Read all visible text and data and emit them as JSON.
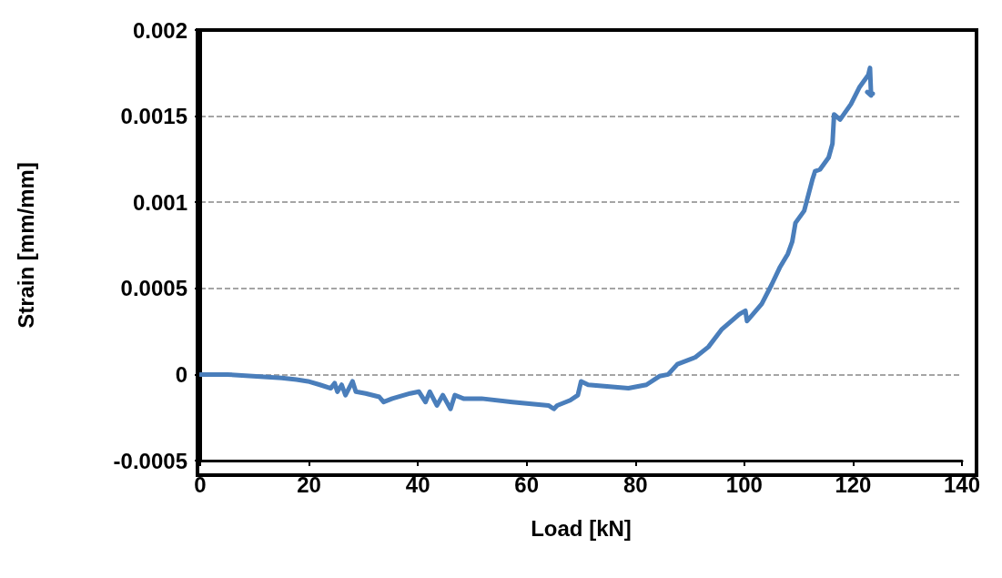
{
  "chart_data": {
    "type": "line",
    "xlabel": "Load [kN]",
    "ylabel": "Strain [mm/mm]",
    "xlim": [
      0,
      140
    ],
    "xticks": [
      0,
      20,
      40,
      60,
      80,
      100,
      120,
      140
    ],
    "ylim": [
      -0.0005,
      0.002
    ],
    "yticks": [
      -0.0005,
      0,
      0.0005,
      0.001,
      0.0015,
      0.002
    ],
    "grid": "y",
    "marker": "none",
    "line_style": "solid",
    "series": [
      {
        "color": "#4a7ebb",
        "x": [
          0,
          5,
          15,
          17.7,
          19.8,
          22,
          24,
          24.7,
          25.2,
          26,
          26.7,
          28,
          28.6,
          30.4,
          32.9,
          33.7,
          35.3,
          38.6,
          40.2,
          41.4,
          42.2,
          43.5,
          44.6,
          46,
          46.8,
          48.4,
          51.7,
          57.4,
          64,
          65,
          65.6,
          68,
          69.4,
          70,
          71.3,
          78.7,
          82,
          84.4,
          86,
          87.7,
          91,
          93.4,
          95.8,
          99.1,
          100.2,
          100.5,
          103.2,
          105,
          106.5,
          108,
          108.8,
          109.4,
          111,
          112.5,
          113,
          113.9,
          115.5,
          116.2,
          116.5,
          117.6,
          119.6,
          121.2,
          122.8,
          123.1,
          123.3,
          122.6,
          123.6
        ],
        "values": [
          0,
          0,
          -2e-05,
          -3e-05,
          -4e-05,
          -6e-05,
          -8e-05,
          -5e-05,
          -0.0001,
          -6e-05,
          -0.00012,
          -4e-05,
          -0.0001,
          -0.00011,
          -0.00013,
          -0.00016,
          -0.00014,
          -0.00011,
          -0.0001,
          -0.00016,
          -0.0001,
          -0.00018,
          -0.00012,
          -0.0002,
          -0.00012,
          -0.00014,
          -0.00014,
          -0.00016,
          -0.00018,
          -0.0002,
          -0.00018,
          -0.00015,
          -0.00012,
          -4e-05,
          -6e-05,
          -8e-05,
          -6e-05,
          -1e-05,
          0,
          6e-05,
          0.0001,
          0.00016,
          0.00026,
          0.00035,
          0.00037,
          0.00031,
          0.00041,
          0.00052,
          0.00062,
          0.0007,
          0.00077,
          0.00088,
          0.00095,
          0.00113,
          0.00118,
          0.00119,
          0.00126,
          0.00134,
          0.00151,
          0.00148,
          0.00157,
          0.00167,
          0.00174,
          0.00178,
          0.00162,
          0.00164,
          0.00163
        ]
      }
    ]
  }
}
